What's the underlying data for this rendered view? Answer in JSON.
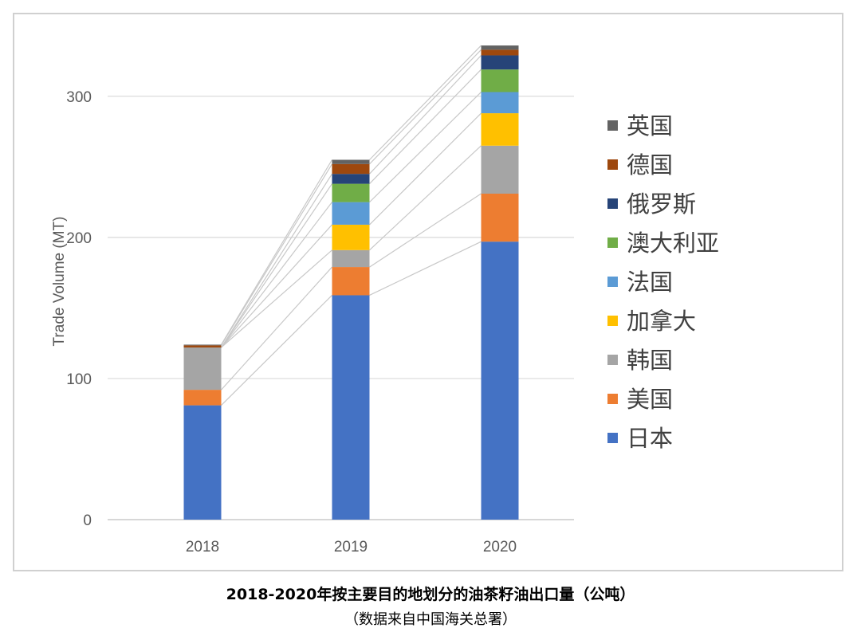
{
  "chart_data": {
    "type": "bar",
    "stacked": true,
    "categories": [
      "2018",
      "2019",
      "2020"
    ],
    "ylabel": "Trade Volume (MT)",
    "xlabel": "",
    "ylim": [
      0,
      340
    ],
    "yticks": [
      0,
      100,
      200,
      300
    ],
    "grid": true,
    "legend_position": "right",
    "connector_lines": true,
    "series": [
      {
        "name": "日本",
        "color": "#4472c4",
        "values": [
          81,
          159,
          197
        ]
      },
      {
        "name": "美国",
        "color": "#ed7d31",
        "values": [
          11,
          20,
          34
        ]
      },
      {
        "name": "韩国",
        "color": "#a5a5a5",
        "values": [
          30,
          12,
          34
        ]
      },
      {
        "name": "加拿大",
        "color": "#ffc000",
        "values": [
          0,
          18,
          23
        ]
      },
      {
        "name": "法国",
        "color": "#5b9bd5",
        "values": [
          0,
          16,
          15
        ]
      },
      {
        "name": "澳大利亚",
        "color": "#70ad47",
        "values": [
          0,
          13,
          16
        ]
      },
      {
        "name": "俄罗斯",
        "color": "#264478",
        "values": [
          0,
          7,
          10
        ]
      },
      {
        "name": "德国",
        "color": "#9e480e",
        "values": [
          1.5,
          7,
          4
        ]
      },
      {
        "name": "英国",
        "color": "#636363",
        "values": [
          0.5,
          3,
          3
        ]
      }
    ]
  },
  "caption": {
    "title": "2018-2020年按主要目的地划分的油茶籽油出口量（公吨）",
    "source": "（数据来自中国海关总署）"
  }
}
